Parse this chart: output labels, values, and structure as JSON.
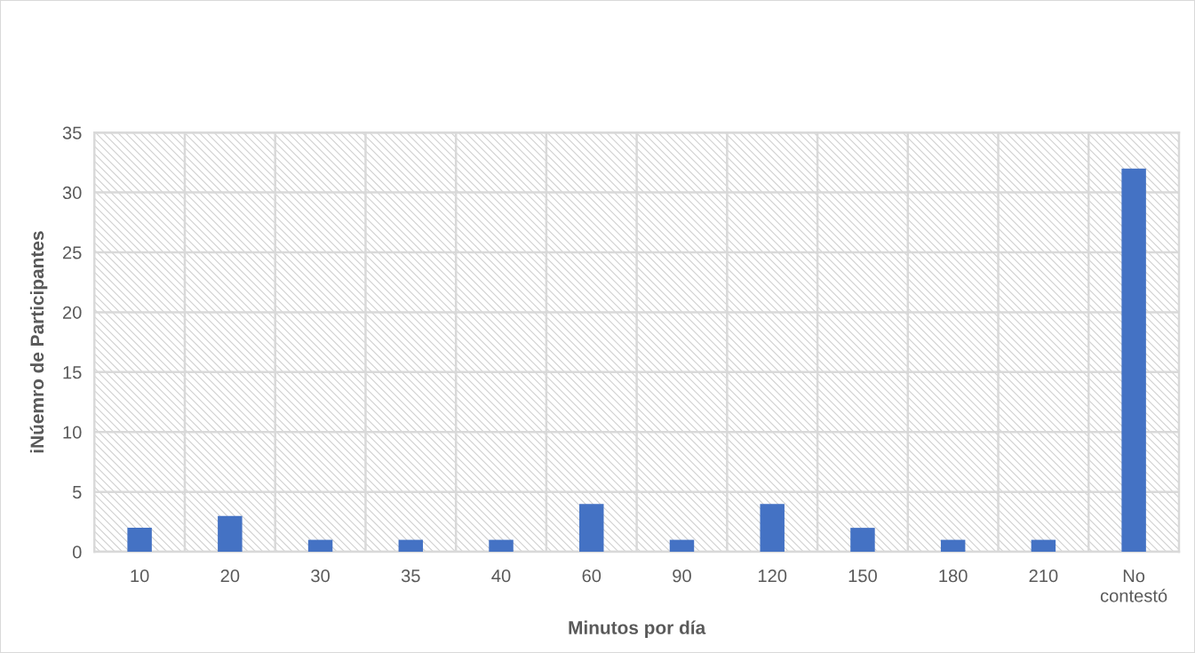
{
  "chart_data": {
    "type": "bar",
    "xlabel": "Minutos por día",
    "ylabel": "iNúemro de Participantes",
    "categories": [
      "10",
      "20",
      "30",
      "35",
      "40",
      "60",
      "90",
      "120",
      "150",
      "180",
      "210",
      "No contestó"
    ],
    "values": [
      2,
      3,
      1,
      1,
      1,
      4,
      1,
      4,
      2,
      1,
      1,
      32
    ],
    "color": "#4472c4",
    "ylim": [
      0,
      35
    ],
    "yticks": [
      0,
      5,
      10,
      15,
      20,
      25,
      30,
      35
    ],
    "grid": true
  }
}
